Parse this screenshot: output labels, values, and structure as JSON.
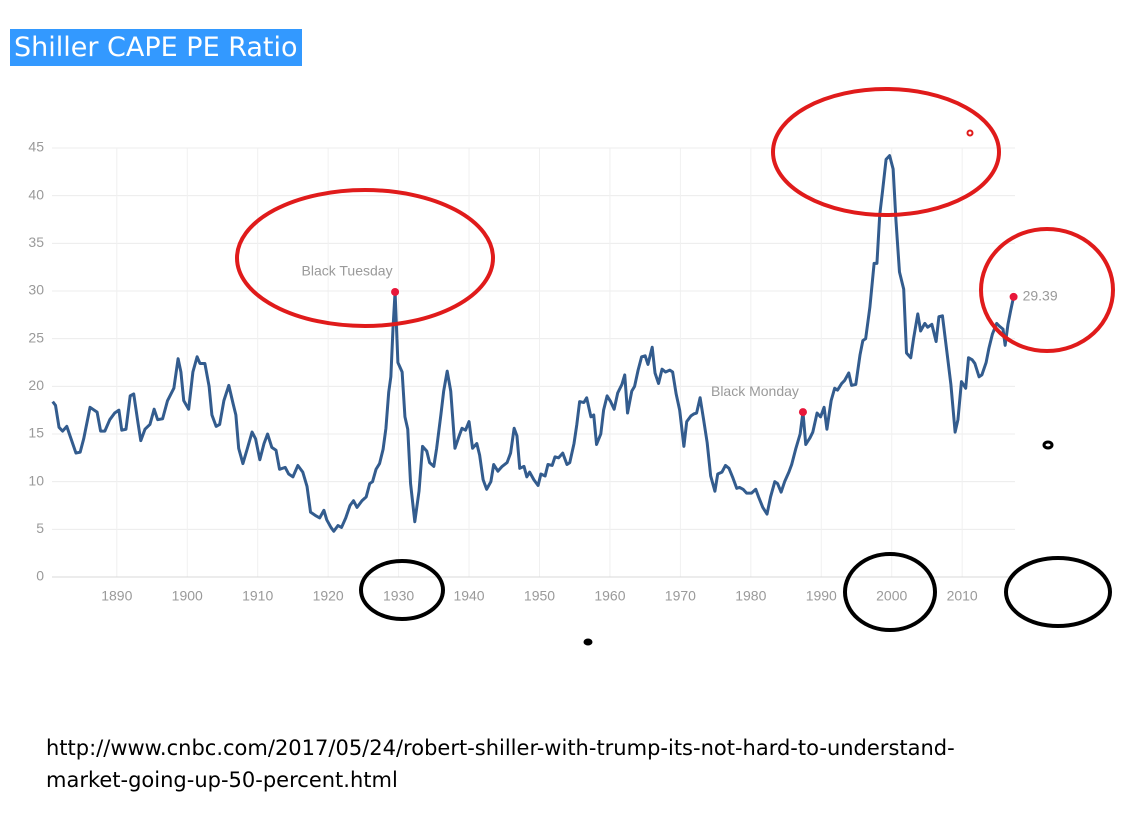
{
  "chart_data": {
    "type": "line",
    "title": "Shiller CAPE PE Ratio",
    "color": "#335c8e",
    "grid": true,
    "xlim": [
      1880.8,
      2017.5
    ],
    "xticks": [
      1890,
      1900,
      1910,
      1920,
      1930,
      1940,
      1950,
      1960,
      1970,
      1980,
      1990,
      2000,
      2010
    ],
    "ylim": [
      0,
      45
    ],
    "yticks": [
      0,
      5,
      10,
      15,
      20,
      25,
      30,
      35,
      40,
      45
    ],
    "x": [
      1880.9,
      1881.3,
      1881.8,
      1882.3,
      1882.9,
      1883.5,
      1884.2,
      1884.8,
      1885.3,
      1886.2,
      1887.2,
      1887.7,
      1888.3,
      1889.0,
      1889.7,
      1890.3,
      1890.7,
      1891.3,
      1891.9,
      1892.4,
      1893.0,
      1893.4,
      1894.0,
      1894.7,
      1895.3,
      1895.8,
      1896.5,
      1897.2,
      1898.1,
      1898.7,
      1899.1,
      1899.5,
      1900.2,
      1900.8,
      1901.4,
      1901.8,
      1902.5,
      1903.1,
      1903.5,
      1904.1,
      1904.6,
      1905.2,
      1905.9,
      1906.5,
      1906.9,
      1907.3,
      1907.9,
      1908.5,
      1909.2,
      1909.7,
      1910.3,
      1910.9,
      1911.4,
      1912.0,
      1912.6,
      1913.1,
      1913.9,
      1914.4,
      1915.0,
      1915.7,
      1916.4,
      1917.0,
      1917.5,
      1918.3,
      1918.8,
      1919.4,
      1919.8,
      1920.4,
      1920.8,
      1921.4,
      1921.9,
      1922.5,
      1923.1,
      1923.6,
      1924.1,
      1924.8,
      1925.4,
      1925.9,
      1926.3,
      1926.8,
      1927.3,
      1927.8,
      1928.2,
      1928.6,
      1928.9,
      1929.2,
      1929.5,
      1929.9,
      1930.5,
      1930.9,
      1931.3,
      1931.7,
      1932.3,
      1932.9,
      1933.4,
      1934.0,
      1934.4,
      1935.0,
      1935.4,
      1936.0,
      1936.4,
      1936.9,
      1937.4,
      1938.0,
      1938.6,
      1939.0,
      1939.5,
      1940.0,
      1940.5,
      1941.1,
      1941.5,
      1942.0,
      1942.5,
      1943.1,
      1943.5,
      1944.1,
      1944.7,
      1945.4,
      1945.9,
      1946.4,
      1946.8,
      1947.2,
      1947.8,
      1948.2,
      1948.6,
      1949.2,
      1949.8,
      1950.2,
      1950.8,
      1951.2,
      1951.8,
      1952.2,
      1952.7,
      1953.3,
      1953.9,
      1954.3,
      1954.9,
      1955.3,
      1955.7,
      1956.3,
      1956.7,
      1957.3,
      1957.7,
      1958.1,
      1958.7,
      1959.1,
      1959.6,
      1960.1,
      1960.6,
      1961.1,
      1961.7,
      1962.1,
      1962.5,
      1963.1,
      1963.5,
      1964.0,
      1964.5,
      1965.0,
      1965.4,
      1966.0,
      1966.4,
      1966.9,
      1967.4,
      1967.9,
      1968.5,
      1968.9,
      1969.4,
      1969.9,
      1970.5,
      1970.9,
      1971.5,
      1971.9,
      1972.3,
      1972.8,
      1973.3,
      1973.8,
      1974.3,
      1974.9,
      1975.3,
      1975.9,
      1976.4,
      1976.9,
      1977.4,
      1978.0,
      1978.4,
      1978.9,
      1979.4,
      1980.1,
      1980.7,
      1981.1,
      1981.7,
      1982.3,
      1982.8,
      1983.4,
      1983.8,
      1984.3,
      1984.8,
      1985.4,
      1985.8,
      1986.4,
      1987.0,
      1987.4,
      1987.8,
      1988.4,
      1988.8,
      1989.4,
      1989.9,
      1990.4,
      1990.8,
      1991.4,
      1991.9,
      1992.3,
      1992.9,
      1993.3,
      1993.9,
      1994.3,
      1994.9,
      1995.5,
      1995.9,
      1996.3,
      1996.9,
      1997.5,
      1997.9,
      1998.3,
      1998.7,
      1999.2,
      1999.7,
      2000.2,
      2000.6,
      2001.1,
      2001.7,
      2002.1,
      2002.7,
      2003.1,
      2003.7,
      2004.1,
      2004.7,
      2005.1,
      2005.7,
      2006.3,
      2006.7,
      2007.2,
      2007.8,
      2008.4,
      2009.0,
      2009.4,
      2009.9,
      2010.5,
      2010.9,
      2011.4,
      2011.8,
      2012.4,
      2012.8,
      2013.4,
      2013.8,
      2014.3,
      2014.9,
      2015.3,
      2015.8,
      2016.1,
      2016.5,
      2016.9,
      2017.3
    ],
    "values": [
      18.4,
      18,
      15.7,
      15.3,
      15.8,
      14.5,
      13,
      13.1,
      14.5,
      17.8,
      17.3,
      15.3,
      15.3,
      16.5,
      17.2,
      17.5,
      15.4,
      15.5,
      19,
      19.2,
      16.2,
      14.3,
      15.5,
      16,
      17.6,
      16.5,
      16.6,
      18.5,
      19.8,
      22.9,
      21.5,
      18.5,
      17.6,
      21.5,
      23.1,
      22.4,
      22.4,
      20,
      17,
      15.8,
      16,
      18.5,
      20.1,
      18.2,
      17,
      13.5,
      11.9,
      13.4,
      15.2,
      14.5,
      12.3,
      14,
      15,
      13.6,
      13.3,
      11.3,
      11.5,
      10.8,
      10.5,
      11.7,
      11,
      9.5,
      6.8,
      6.4,
      6.2,
      7,
      6,
      5.2,
      4.8,
      5.4,
      5.2,
      6.2,
      7.5,
      8,
      7.3,
      8,
      8.4,
      9.8,
      10,
      11.3,
      11.9,
      13.4,
      15.6,
      19.4,
      21,
      26,
      29.9,
      22.5,
      21.5,
      16.8,
      15.5,
      9.8,
      5.8,
      9,
      13.7,
      13.2,
      12,
      11.6,
      13.5,
      17,
      19.5,
      21.6,
      19.5,
      13.5,
      14.8,
      15.6,
      15.4,
      16.3,
      13.5,
      14,
      12.8,
      10.2,
      9.2,
      10,
      11.8,
      11.1,
      11.6,
      12,
      13,
      15.6,
      14.8,
      11.4,
      11.6,
      10.5,
      11,
      10.2,
      9.6,
      10.8,
      10.6,
      11.8,
      11.7,
      12.6,
      12.5,
      13,
      11.8,
      12,
      14,
      16,
      18.4,
      18.3,
      18.8,
      16.8,
      17,
      13.9,
      15,
      17.5,
      19,
      18.4,
      17.6,
      19.3,
      20.2,
      21.2,
      17.2,
      19.5,
      20,
      21.7,
      23.1,
      23.2,
      22.3,
      24.1,
      21.4,
      20.3,
      21.8,
      21.5,
      21.7,
      21.5,
      19.2,
      17.5,
      13.7,
      16.3,
      16.9,
      17.1,
      17.2,
      18.8,
      16.5,
      14.1,
      10.6,
      9,
      10.8,
      11,
      11.7,
      11.4,
      10.5,
      9.3,
      9.4,
      9.2,
      8.8,
      8.8,
      9.2,
      8.4,
      7.3,
      6.6,
      8.4,
      10,
      9.8,
      8.9,
      10,
      11,
      11.8,
      13.5,
      15,
      17.3,
      13.9,
      14.6,
      15.2,
      17.2,
      16.8,
      17.8,
      15.5,
      18.5,
      19.8,
      19.6,
      20.3,
      20.6,
      21.4,
      20.1,
      20.2,
      23.3,
      24.8,
      25,
      28.3,
      32.9,
      32.9,
      38,
      40.5,
      43.8,
      44.2,
      42.8,
      37.4,
      32,
      30.2,
      23.5,
      23,
      25,
      27.6,
      25.8,
      26.6,
      26.2,
      26.5,
      24.7,
      27.3,
      27.4,
      23.8,
      20.2,
      15.2,
      16.5,
      20.5,
      19.8,
      23,
      22.8,
      22.4,
      21,
      21.2,
      22.5,
      24,
      25.5,
      26.6,
      26.3,
      26,
      24.3,
      26.5,
      28,
      29.39
    ],
    "annotations": [
      {
        "label": "Black Tuesday",
        "x": 1929.5,
        "y": 29.9,
        "color": "#e8173a"
      },
      {
        "label": "Black Monday",
        "x": 1987.4,
        "y": 17.3,
        "color": "#e8173a"
      },
      {
        "label": "29.39",
        "x": 2017.3,
        "y": 29.39,
        "color": "#e8173a"
      }
    ]
  },
  "source_lines": [
    "http://www.cnbc.com/2017/05/24/robert-shiller-with-trump-its-not-hard-to-understand-",
    "market-going-up-50-percent.html"
  ]
}
